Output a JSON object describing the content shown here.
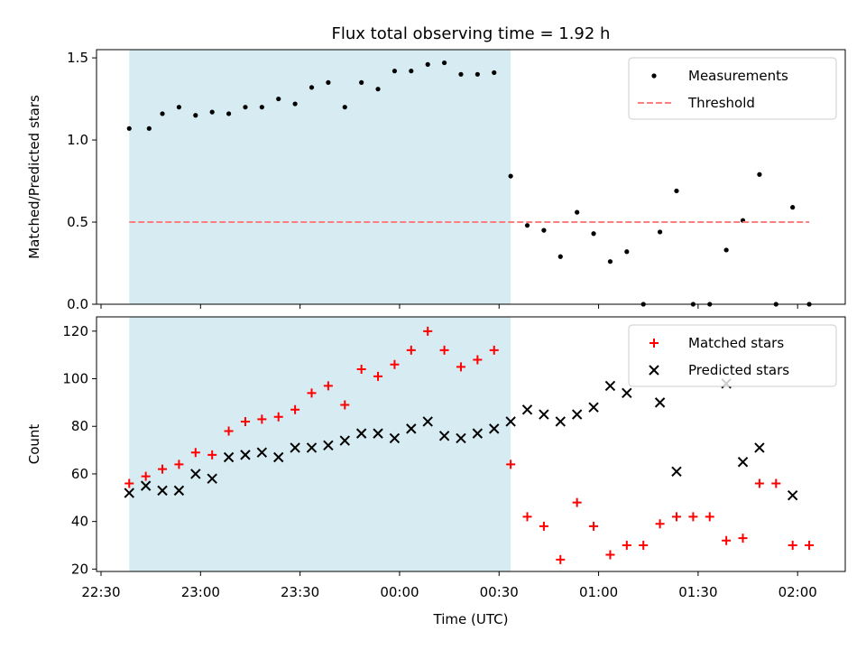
{
  "title": "Flux total observing time = 1.92 h",
  "shared_xlabel": "Time (UTC)",
  "x_tick_labels": [
    "22:30",
    "23:00",
    "23:30",
    "00:00",
    "00:30",
    "01:00",
    "01:30",
    "02:00"
  ],
  "shaded_interval": {
    "start": "22:38:30",
    "end": "00:33:30",
    "color": "#add8e6"
  },
  "colors": {
    "measurements": "#000000",
    "threshold": "#ff7f7f",
    "matched": "#ff0000",
    "predicted": "#000000"
  },
  "chart_data": [
    {
      "type": "scatter",
      "ylabel": "Matched/Predicted stars",
      "ylim": [
        0,
        1.55
      ],
      "xlim": [
        "22:30",
        "02:13"
      ],
      "yticks": [
        0.0,
        0.5,
        1.0,
        1.5
      ],
      "ytick_labels": [
        "0.0",
        "0.5",
        "1.0",
        "1.5"
      ],
      "legend": {
        "placement": "top-right",
        "entries": [
          "Measurements",
          "Threshold"
        ]
      },
      "series": [
        {
          "name": "Measurements",
          "marker": "dot",
          "points": [
            [
              "22:38:30",
              1.07
            ],
            [
              "22:44:30",
              1.07
            ],
            [
              "22:48:30",
              1.16
            ],
            [
              "22:53:30",
              1.2
            ],
            [
              "22:58:30",
              1.15
            ],
            [
              "23:03:30",
              1.17
            ],
            [
              "23:08:30",
              1.16
            ],
            [
              "23:13:30",
              1.2
            ],
            [
              "23:18:30",
              1.2
            ],
            [
              "23:23:30",
              1.25
            ],
            [
              "23:28:30",
              1.22
            ],
            [
              "23:33:30",
              1.32
            ],
            [
              "23:38:30",
              1.35
            ],
            [
              "23:43:30",
              1.2
            ],
            [
              "23:48:30",
              1.35
            ],
            [
              "23:53:30",
              1.31
            ],
            [
              "23:58:30",
              1.42
            ],
            [
              "00:03:30",
              1.42
            ],
            [
              "00:08:30",
              1.46
            ],
            [
              "00:13:30",
              1.47
            ],
            [
              "00:18:30",
              1.4
            ],
            [
              "00:23:30",
              1.4
            ],
            [
              "00:28:30",
              1.41
            ],
            [
              "00:33:30",
              0.78
            ],
            [
              "00:38:30",
              0.48
            ],
            [
              "00:43:30",
              0.45
            ],
            [
              "00:48:30",
              0.29
            ],
            [
              "00:53:30",
              0.56
            ],
            [
              "00:58:30",
              0.43
            ],
            [
              "01:03:30",
              0.26
            ],
            [
              "01:08:30",
              0.32
            ],
            [
              "01:13:30",
              0.0
            ],
            [
              "01:18:30",
              0.44
            ],
            [
              "01:23:30",
              0.69
            ],
            [
              "01:28:30",
              0.0
            ],
            [
              "01:33:30",
              0.0
            ],
            [
              "01:38:30",
              0.33
            ],
            [
              "01:43:30",
              0.51
            ],
            [
              "01:48:30",
              0.79
            ],
            [
              "01:53:30",
              0.0
            ],
            [
              "01:58:30",
              0.59
            ],
            [
              "02:03:30",
              0.0
            ]
          ]
        },
        {
          "name": "Threshold",
          "marker": "dashed-line",
          "points": [
            [
              "22:38:30",
              0.5
            ],
            [
              "02:03:30",
              0.5
            ]
          ]
        }
      ]
    },
    {
      "type": "scatter",
      "ylabel": "Count",
      "ylim": [
        19,
        126
      ],
      "xlim": [
        "22:30",
        "02:13"
      ],
      "yticks": [
        20,
        40,
        60,
        80,
        100,
        120
      ],
      "ytick_labels": [
        "20",
        "40",
        "60",
        "80",
        "100",
        "120"
      ],
      "legend": {
        "placement": "top-right",
        "entries": [
          "Matched stars",
          "Predicted stars"
        ]
      },
      "series": [
        {
          "name": "Matched stars",
          "marker": "plus",
          "points": [
            [
              "22:38:30",
              56
            ],
            [
              "22:43:30",
              59
            ],
            [
              "22:48:30",
              62
            ],
            [
              "22:53:30",
              64
            ],
            [
              "22:58:30",
              69
            ],
            [
              "23:03:30",
              68
            ],
            [
              "23:08:30",
              78
            ],
            [
              "23:13:30",
              82
            ],
            [
              "23:18:30",
              83
            ],
            [
              "23:23:30",
              84
            ],
            [
              "23:28:30",
              87
            ],
            [
              "23:33:30",
              94
            ],
            [
              "23:38:30",
              97
            ],
            [
              "23:43:30",
              89
            ],
            [
              "23:48:30",
              104
            ],
            [
              "23:53:30",
              101
            ],
            [
              "23:58:30",
              106
            ],
            [
              "00:03:30",
              112
            ],
            [
              "00:08:30",
              120
            ],
            [
              "00:13:30",
              112
            ],
            [
              "00:18:30",
              105
            ],
            [
              "00:23:30",
              108
            ],
            [
              "00:28:30",
              112
            ],
            [
              "00:33:30",
              64
            ],
            [
              "00:38:30",
              42
            ],
            [
              "00:43:30",
              38
            ],
            [
              "00:48:30",
              24
            ],
            [
              "00:53:30",
              48
            ],
            [
              "00:58:30",
              38
            ],
            [
              "01:03:30",
              26
            ],
            [
              "01:08:30",
              30
            ],
            [
              "01:13:30",
              30
            ],
            [
              "01:18:30",
              39
            ],
            [
              "01:23:30",
              42
            ],
            [
              "01:28:30",
              42
            ],
            [
              "01:33:30",
              42
            ],
            [
              "01:38:30",
              32
            ],
            [
              "01:43:30",
              33
            ],
            [
              "01:48:30",
              56
            ],
            [
              "01:53:30",
              56
            ],
            [
              "01:58:30",
              30
            ],
            [
              "02:03:30",
              30
            ]
          ]
        },
        {
          "name": "Predicted stars",
          "marker": "x",
          "points": [
            [
              "22:38:30",
              52
            ],
            [
              "22:43:30",
              55
            ],
            [
              "22:48:30",
              53
            ],
            [
              "22:53:30",
              53
            ],
            [
              "22:58:30",
              60
            ],
            [
              "23:03:30",
              58
            ],
            [
              "23:08:30",
              67
            ],
            [
              "23:13:30",
              68
            ],
            [
              "23:18:30",
              69
            ],
            [
              "23:23:30",
              67
            ],
            [
              "23:28:30",
              71
            ],
            [
              "23:33:30",
              71
            ],
            [
              "23:38:30",
              72
            ],
            [
              "23:43:30",
              74
            ],
            [
              "23:48:30",
              77
            ],
            [
              "23:53:30",
              77
            ],
            [
              "23:58:30",
              75
            ],
            [
              "00:03:30",
              79
            ],
            [
              "00:08:30",
              82
            ],
            [
              "00:13:30",
              76
            ],
            [
              "00:18:30",
              75
            ],
            [
              "00:23:30",
              77
            ],
            [
              "00:28:30",
              79
            ],
            [
              "00:33:30",
              82
            ],
            [
              "00:38:30",
              87
            ],
            [
              "00:43:30",
              85
            ],
            [
              "00:48:30",
              82
            ],
            [
              "00:53:30",
              85
            ],
            [
              "00:58:30",
              88
            ],
            [
              "01:03:30",
              97
            ],
            [
              "01:08:30",
              94
            ],
            [
              "01:18:30",
              90
            ],
            [
              "01:23:30",
              61
            ],
            [
              "01:38:30",
              98
            ],
            [
              "01:43:30",
              65
            ],
            [
              "01:48:30",
              71
            ],
            [
              "01:58:30",
              51
            ]
          ]
        }
      ]
    }
  ]
}
